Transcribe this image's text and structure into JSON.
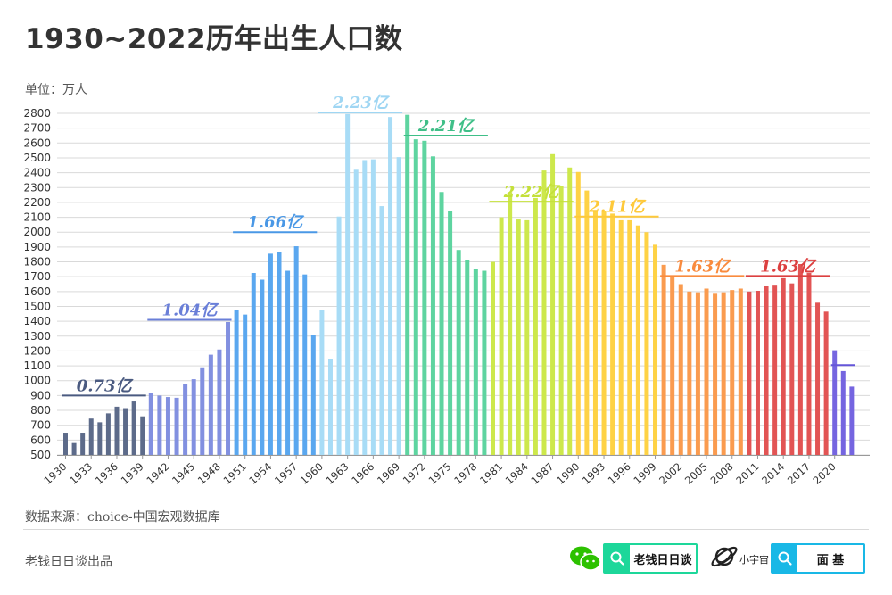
{
  "title": "1930~2022历年出生人口数",
  "unit": "单位：万人",
  "source": "数据来源：choice-中国宏观数据库",
  "credit": "老钱日日谈出品",
  "footer": {
    "search1_text": "老钱日日谈",
    "brand_label": "小宇宙",
    "search2_text": "面 基",
    "search1_color": "#1dd79a",
    "search2_color": "#19b8e6",
    "wechat_color": "#2dc100"
  },
  "chart_data": {
    "type": "bar",
    "title": "1930~2022历年出生人口数",
    "ylabel": "单位：万人",
    "ylim": [
      500,
      2800
    ],
    "ytick_step": 100,
    "grid": true,
    "x": [
      1930,
      1931,
      1932,
      1933,
      1934,
      1935,
      1936,
      1937,
      1938,
      1939,
      1940,
      1941,
      1942,
      1943,
      1944,
      1945,
      1946,
      1947,
      1948,
      1949,
      1950,
      1951,
      1952,
      1953,
      1954,
      1955,
      1956,
      1957,
      1958,
      1959,
      1960,
      1961,
      1962,
      1963,
      1964,
      1965,
      1966,
      1967,
      1968,
      1969,
      1970,
      1971,
      1972,
      1973,
      1974,
      1975,
      1976,
      1977,
      1978,
      1979,
      1980,
      1981,
      1982,
      1983,
      1984,
      1985,
      1986,
      1987,
      1988,
      1989,
      1990,
      1991,
      1992,
      1993,
      1994,
      1995,
      1996,
      1997,
      1998,
      1999,
      2000,
      2001,
      2002,
      2003,
      2004,
      2005,
      2006,
      2007,
      2008,
      2009,
      2010,
      2011,
      2012,
      2013,
      2014,
      2015,
      2016,
      2017,
      2018,
      2019,
      2020,
      2021,
      2022
    ],
    "xtick_labels": [
      "1930",
      "1933",
      "1936",
      "1939",
      "1942",
      "1945",
      "1948",
      "1951",
      "1954",
      "1957",
      "1960",
      "1963",
      "1966",
      "1969",
      "1972",
      "1975",
      "1978",
      "1981",
      "1984",
      "1987",
      "1990",
      "1993",
      "1996",
      "1999",
      "2002",
      "2005",
      "2008",
      "2011",
      "2014",
      "2017",
      "2020"
    ],
    "values": [
      650,
      580,
      650,
      745,
      720,
      780,
      825,
      815,
      860,
      760,
      915,
      900,
      890,
      885,
      975,
      1010,
      1090,
      1175,
      1210,
      1395,
      1475,
      1445,
      1725,
      1680,
      1855,
      1865,
      1740,
      1905,
      1715,
      1310,
      1475,
      1145,
      2105,
      2795,
      2420,
      2485,
      2490,
      2175,
      2775,
      2505,
      2790,
      2625,
      2615,
      2510,
      2270,
      2145,
      1880,
      1810,
      1755,
      1740,
      1800,
      2100,
      2270,
      2085,
      2080,
      2230,
      2415,
      2525,
      2310,
      2435,
      2405,
      2280,
      2140,
      2140,
      2125,
      2080,
      2080,
      2045,
      2000,
      1915,
      1780,
      1705,
      1650,
      1600,
      1595,
      1620,
      1585,
      1595,
      1610,
      1620,
      1600,
      1605,
      1635,
      1640,
      1690,
      1655,
      1785,
      1725,
      1525,
      1465,
      1205,
      1065,
      960
    ],
    "colors": [
      "#5d6b8a",
      "#5d6b8a",
      "#5d6b8a",
      "#5d6b8a",
      "#5d6b8a",
      "#5d6b8a",
      "#5d6b8a",
      "#5d6b8a",
      "#5d6b8a",
      "#5d6b8a",
      "#8290e0",
      "#8290e0",
      "#8290e0",
      "#8290e0",
      "#8290e0",
      "#8290e0",
      "#8290e0",
      "#8290e0",
      "#8290e0",
      "#8290e0",
      "#5aa7ef",
      "#5aa7ef",
      "#5aa7ef",
      "#5aa7ef",
      "#5aa7ef",
      "#5aa7ef",
      "#5aa7ef",
      "#5aa7ef",
      "#5aa7ef",
      "#5aa7ef",
      "#a8dcf6",
      "#a8dcf6",
      "#a8dcf6",
      "#a8dcf6",
      "#a8dcf6",
      "#a8dcf6",
      "#a8dcf6",
      "#a8dcf6",
      "#a8dcf6",
      "#a8dcf6",
      "#5ed4a0",
      "#5ed4a0",
      "#5ed4a0",
      "#5ed4a0",
      "#5ed4a0",
      "#5ed4a0",
      "#5ed4a0",
      "#5ed4a0",
      "#5ed4a0",
      "#5ed4a0",
      "#cde84c",
      "#cde84c",
      "#cde84c",
      "#cde84c",
      "#cde84c",
      "#cde84c",
      "#cde84c",
      "#cde84c",
      "#cde84c",
      "#cde84c",
      "#fed245",
      "#fed245",
      "#fed245",
      "#fed245",
      "#fed245",
      "#fed245",
      "#fed245",
      "#fed245",
      "#fed245",
      "#fed245",
      "#fa9b4f",
      "#fa9b4f",
      "#fa9b4f",
      "#fa9b4f",
      "#fa9b4f",
      "#fa9b4f",
      "#fa9b4f",
      "#fa9b4f",
      "#fa9b4f",
      "#fa9b4f",
      "#e25454",
      "#e25454",
      "#e25454",
      "#e25454",
      "#e25454",
      "#e25454",
      "#e25454",
      "#e25454",
      "#e25454",
      "#e25454",
      "#7565e0",
      "#7565e0",
      "#7565e0"
    ],
    "decade_totals": [
      {
        "label": "0.73亿",
        "from": 1930,
        "to": 1939,
        "level": 900,
        "color": "#4a5a80"
      },
      {
        "label": "1.04亿",
        "from": 1940,
        "to": 1949,
        "level": 1410,
        "color": "#6a7fd8"
      },
      {
        "label": "1.66亿",
        "from": 1950,
        "to": 1959,
        "level": 2000,
        "color": "#4a98e6"
      },
      {
        "label": "2.23亿",
        "from": 1960,
        "to": 1969,
        "level": 2805,
        "color": "#9fd6f3"
      },
      {
        "label": "2.21亿",
        "from": 1970,
        "to": 1979,
        "level": 2650,
        "color": "#3fbf88"
      },
      {
        "label": "2.22亿",
        "from": 1980,
        "to": 1989,
        "level": 2205,
        "color": "#c4e03a"
      },
      {
        "label": "2.11亿",
        "from": 1990,
        "to": 1999,
        "level": 2105,
        "color": "#fec93a"
      },
      {
        "label": "1.63亿",
        "from": 2000,
        "to": 2009,
        "level": 1705,
        "color": "#f98b3e"
      },
      {
        "label": "1.63亿",
        "from": 2010,
        "to": 2019,
        "level": 1705,
        "color": "#dc4040"
      },
      {
        "label": "",
        "from": 2020,
        "to": 2022,
        "level": 1105,
        "color": "#6455d8"
      }
    ]
  }
}
